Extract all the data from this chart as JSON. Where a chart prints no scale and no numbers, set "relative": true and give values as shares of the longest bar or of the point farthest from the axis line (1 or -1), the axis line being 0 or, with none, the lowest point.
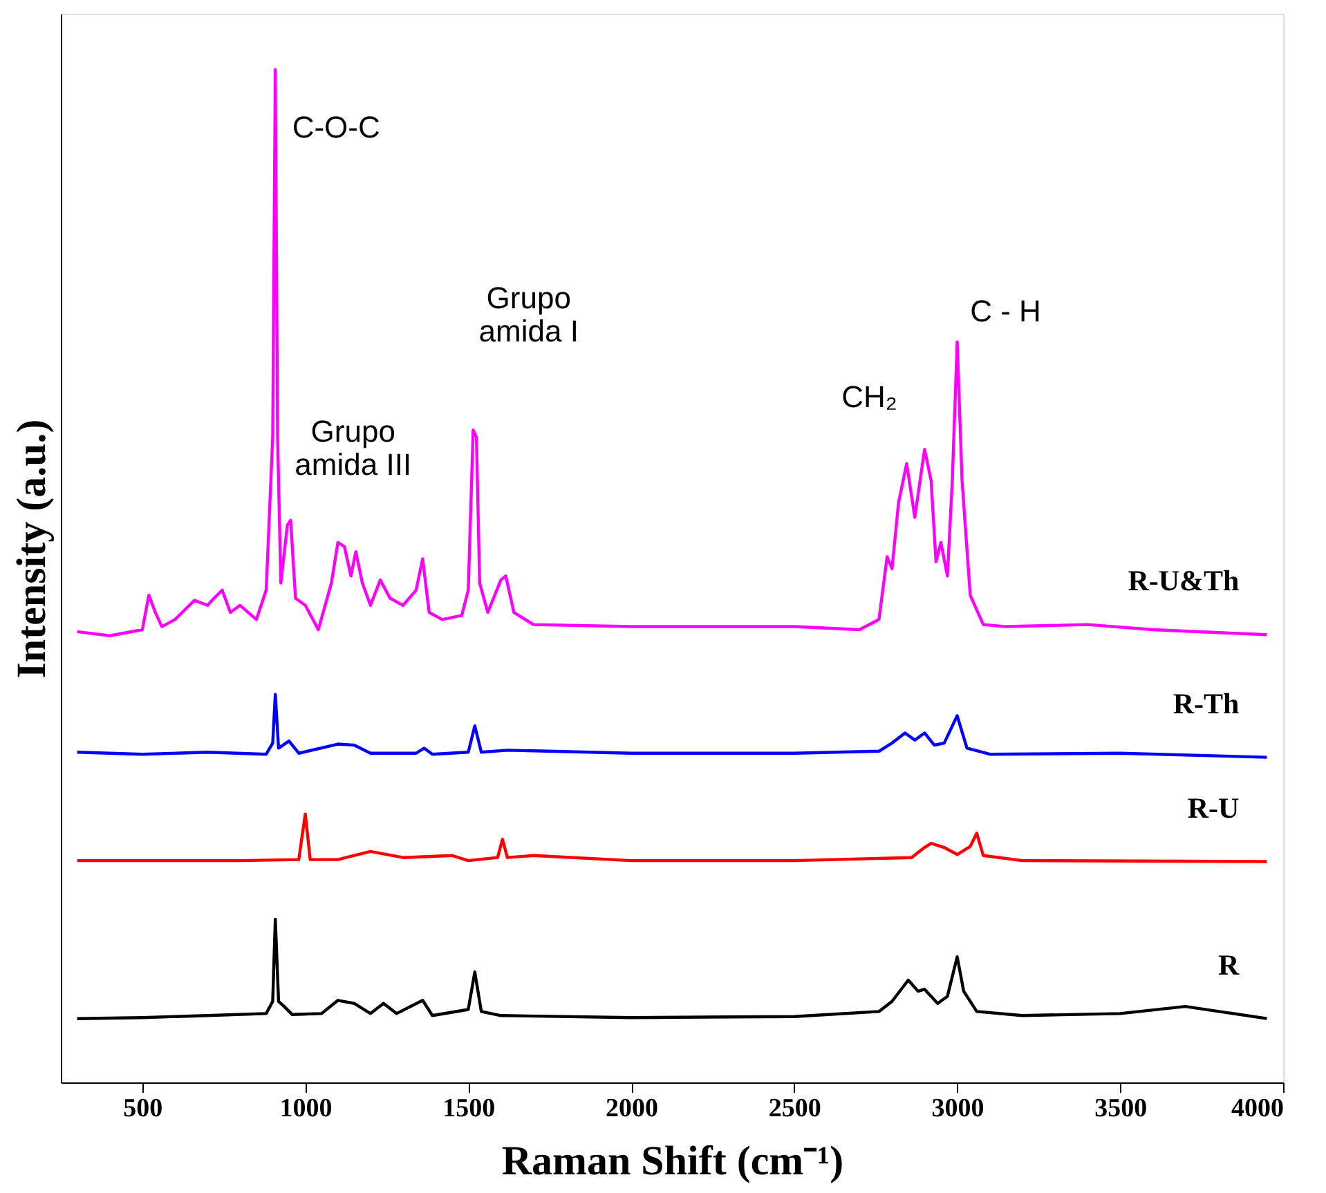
{
  "chart_data": {
    "type": "line",
    "relative": true,
    "xlabel": "Raman Shift (cm⁻¹)",
    "ylabel": "Intensity (a.u.)",
    "xlim": [
      250,
      4000
    ],
    "xticks": [
      500,
      1000,
      1500,
      2000,
      2500,
      3000,
      3500,
      4000
    ],
    "grid": false,
    "legend": false,
    "tick_labels": "x",
    "series": [
      {
        "name": "R-U&Th",
        "color": "#ff00ff",
        "x": [
          300,
          400,
          500,
          520,
          540,
          560,
          600,
          660,
          700,
          720,
          745,
          770,
          800,
          850,
          880,
          900,
          908,
          915,
          925,
          945,
          955,
          970,
          1000,
          1040,
          1080,
          1100,
          1120,
          1140,
          1155,
          1175,
          1200,
          1230,
          1260,
          1300,
          1340,
          1360,
          1380,
          1420,
          1480,
          1500,
          1515,
          1525,
          1535,
          1560,
          1600,
          1615,
          1640,
          1700,
          2000,
          2500,
          2700,
          2760,
          2785,
          2800,
          2820,
          2845,
          2870,
          2900,
          2920,
          2935,
          2950,
          2970,
          2985,
          3000,
          3015,
          3040,
          3080,
          3150,
          3400,
          3600,
          3950
        ],
        "values": [
          0.445,
          0.441,
          0.447,
          0.481,
          0.464,
          0.45,
          0.457,
          0.476,
          0.471,
          0.478,
          0.486,
          0.464,
          0.471,
          0.457,
          0.486,
          0.637,
          1.0,
          0.637,
          0.493,
          0.55,
          0.555,
          0.478,
          0.471,
          0.447,
          0.493,
          0.533,
          0.529,
          0.5,
          0.524,
          0.493,
          0.471,
          0.496,
          0.478,
          0.471,
          0.486,
          0.517,
          0.464,
          0.457,
          0.461,
          0.486,
          0.644,
          0.637,
          0.493,
          0.464,
          0.496,
          0.5,
          0.464,
          0.452,
          0.45,
          0.45,
          0.447,
          0.457,
          0.519,
          0.507,
          0.572,
          0.611,
          0.558,
          0.625,
          0.594,
          0.514,
          0.533,
          0.5,
          0.594,
          0.731,
          0.594,
          0.481,
          0.452,
          0.45,
          0.452,
          0.447,
          0.442
        ]
      },
      {
        "name": "R-Th",
        "color": "#0000ff",
        "x": [
          300,
          500,
          700,
          880,
          900,
          908,
          918,
          950,
          980,
          1100,
          1150,
          1200,
          1340,
          1365,
          1390,
          1500,
          1520,
          1540,
          1620,
          2000,
          2500,
          2760,
          2800,
          2840,
          2870,
          2900,
          2930,
          2960,
          3000,
          3030,
          3100,
          3500,
          3950
        ],
        "values": [
          0.326,
          0.324,
          0.326,
          0.324,
          0.335,
          0.383,
          0.33,
          0.337,
          0.325,
          0.334,
          0.333,
          0.325,
          0.325,
          0.33,
          0.324,
          0.326,
          0.352,
          0.326,
          0.328,
          0.325,
          0.325,
          0.327,
          0.335,
          0.345,
          0.338,
          0.345,
          0.333,
          0.335,
          0.362,
          0.33,
          0.324,
          0.325,
          0.321
        ]
      },
      {
        "name": "R-U",
        "color": "#ff0000",
        "x": [
          300,
          500,
          800,
          980,
          1000,
          1015,
          1100,
          1200,
          1300,
          1450,
          1500,
          1590,
          1605,
          1620,
          1700,
          2000,
          2500,
          2860,
          2900,
          2920,
          2960,
          3000,
          3040,
          3060,
          3080,
          3200,
          3950
        ],
        "values": [
          0.219,
          0.219,
          0.219,
          0.22,
          0.265,
          0.22,
          0.22,
          0.228,
          0.222,
          0.224,
          0.219,
          0.222,
          0.24,
          0.222,
          0.224,
          0.219,
          0.219,
          0.222,
          0.232,
          0.236,
          0.232,
          0.225,
          0.233,
          0.246,
          0.224,
          0.219,
          0.218
        ]
      },
      {
        "name": "R",
        "color": "#000000",
        "x": [
          300,
          500,
          700,
          880,
          900,
          908,
          918,
          935,
          960,
          1050,
          1100,
          1150,
          1200,
          1240,
          1280,
          1360,
          1390,
          1500,
          1520,
          1540,
          1600,
          2000,
          2500,
          2760,
          2800,
          2850,
          2880,
          2900,
          2940,
          2970,
          3000,
          3020,
          3060,
          3200,
          3500,
          3700,
          3950
        ],
        "values": [
          0.063,
          0.064,
          0.066,
          0.068,
          0.08,
          0.161,
          0.08,
          0.075,
          0.067,
          0.068,
          0.081,
          0.078,
          0.068,
          0.078,
          0.068,
          0.081,
          0.066,
          0.072,
          0.109,
          0.07,
          0.066,
          0.064,
          0.065,
          0.07,
          0.08,
          0.101,
          0.09,
          0.092,
          0.078,
          0.085,
          0.124,
          0.09,
          0.07,
          0.066,
          0.068,
          0.075,
          0.063
        ]
      }
    ],
    "annotations": [
      {
        "text": "C-O-C",
        "x": 908,
        "y": 1.0
      },
      {
        "text": "Grupo\namida III",
        "x": 1100,
        "y": 0.533
      },
      {
        "text": "Grupo\namida I",
        "x": 1520,
        "y": 0.644
      },
      {
        "text": "CH₂",
        "x": 2845,
        "y": 0.611
      },
      {
        "text": "C - H",
        "x": 3000,
        "y": 0.731
      }
    ]
  }
}
